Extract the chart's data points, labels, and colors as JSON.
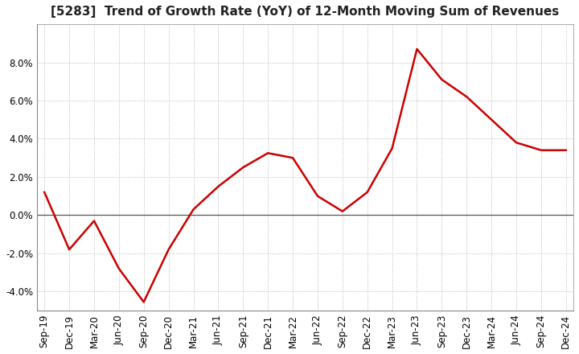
{
  "title": "[5283]  Trend of Growth Rate (YoY) of 12-Month Moving Sum of Revenues",
  "x_labels": [
    "Sep-19",
    "Dec-19",
    "Mar-20",
    "Jun-20",
    "Sep-20",
    "Dec-20",
    "Mar-21",
    "Jun-21",
    "Sep-21",
    "Dec-21",
    "Mar-22",
    "Jun-22",
    "Sep-22",
    "Dec-22",
    "Mar-23",
    "Jun-23",
    "Sep-23",
    "Dec-23",
    "Mar-24",
    "Jun-24",
    "Sep-24",
    "Dec-24"
  ],
  "y_values": [
    1.2,
    -1.8,
    -0.3,
    -2.8,
    -4.55,
    -1.8,
    0.3,
    1.5,
    2.5,
    3.25,
    3.0,
    1.0,
    0.2,
    1.2,
    3.5,
    8.7,
    7.1,
    6.2,
    5.0,
    3.8,
    3.4,
    3.4
  ],
  "line_color": "#cc0000",
  "background_color": "#ffffff",
  "grid_color": "#aaaaaa",
  "zero_line_color": "#555555",
  "ylim": [
    -5.0,
    10.0
  ],
  "yticks": [
    -4.0,
    -2.0,
    0.0,
    2.0,
    4.0,
    6.0,
    8.0
  ],
  "title_fontsize": 11,
  "tick_fontsize": 8.5
}
